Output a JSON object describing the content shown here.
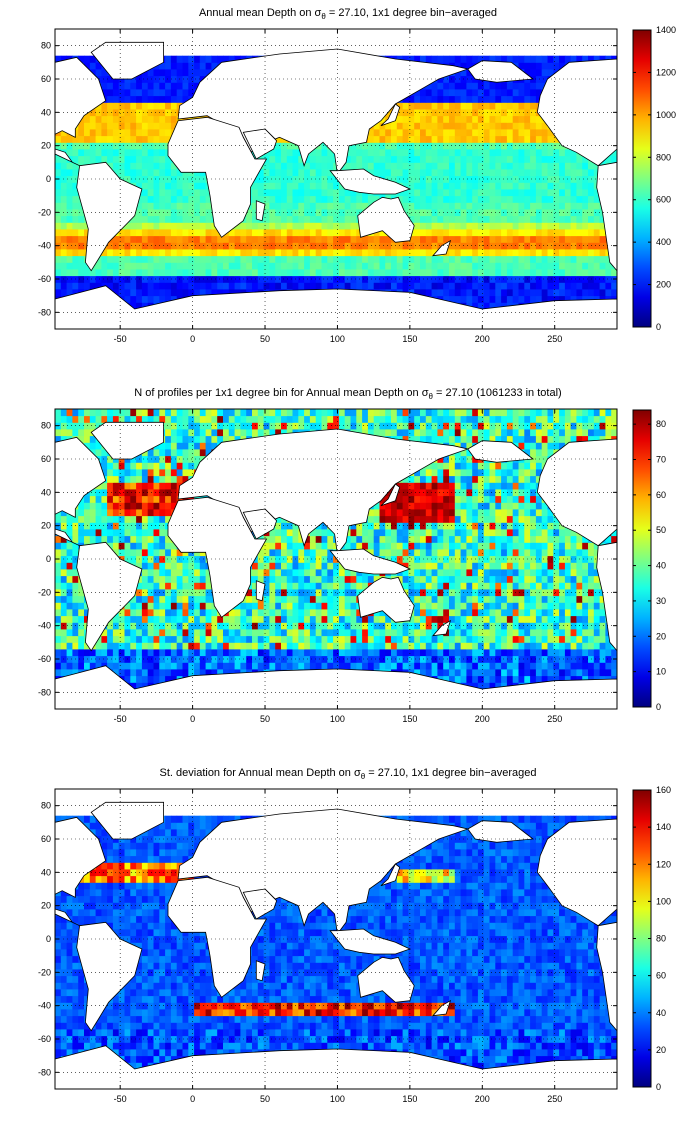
{
  "panels": [
    {
      "title_pre": "Annual mean Depth on σ",
      "title_sub": "θ",
      "title_post": " = 27.10, 1x1 degree bin−averaged",
      "colorbar_ticks": [
        "0",
        "200",
        "400",
        "600",
        "800",
        "1000",
        "1200",
        "1400"
      ],
      "clim": [
        0,
        1400
      ]
    },
    {
      "title_pre": "N of profiles per 1x1 degree bin for Annual mean Depth on σ",
      "title_sub": "θ",
      "title_post": " = 27.10 (1061233 in total)",
      "colorbar_ticks": [
        "0",
        "10",
        "20",
        "30",
        "40",
        "50",
        "60",
        "70",
        "80"
      ],
      "clim": [
        0,
        84
      ]
    },
    {
      "title_pre": "St. deviation for Annual mean Depth on σ",
      "title_sub": "θ",
      "title_post": " = 27.10, 1x1 degree bin−averaged",
      "colorbar_ticks": [
        "0",
        "20",
        "40",
        "60",
        "80",
        "100",
        "120",
        "140",
        "160"
      ],
      "clim": [
        0,
        160
      ]
    }
  ],
  "axes": {
    "x_ticks": [
      "-50",
      "0",
      "50",
      "100",
      "150",
      "200",
      "250"
    ],
    "y_ticks": [
      "80",
      "60",
      "40",
      "20",
      "0",
      "-20",
      "-40",
      "-60",
      "-80"
    ],
    "xlim": [
      -95,
      293
    ],
    "ylim": [
      -90,
      90
    ]
  },
  "chart_data": [
    {
      "type": "heatmap",
      "title": "Annual mean Depth on σθ = 27.10, 1x1 degree bin−averaged",
      "xlim": [
        -95,
        293
      ],
      "ylim": [
        -90,
        90
      ],
      "x_ticks": [
        -50,
        0,
        50,
        100,
        150,
        200,
        250
      ],
      "y_ticks": [
        -80,
        -60,
        -40,
        -20,
        0,
        20,
        40,
        60,
        80
      ],
      "colorbar": {
        "min": 0,
        "max": 1400,
        "ticks": [
          0,
          200,
          400,
          600,
          800,
          1000,
          1200,
          1400
        ],
        "colormap": "jet"
      },
      "grid": true
    },
    {
      "type": "heatmap",
      "title": "N of profiles per 1x1 degree bin for Annual mean Depth on σθ = 27.10 (1061233 in total)",
      "xlim": [
        -95,
        293
      ],
      "ylim": [
        -90,
        90
      ],
      "x_ticks": [
        -50,
        0,
        50,
        100,
        150,
        200,
        250
      ],
      "y_ticks": [
        -80,
        -60,
        -40,
        -20,
        0,
        20,
        40,
        60,
        80
      ],
      "colorbar": {
        "min": 0,
        "max": 84,
        "ticks": [
          0,
          10,
          20,
          30,
          40,
          50,
          60,
          70,
          80
        ],
        "colormap": "jet"
      },
      "grid": true
    },
    {
      "type": "heatmap",
      "title": "St. deviation for Annual mean Depth on σθ = 27.10, 1x1 degree bin−averaged",
      "xlim": [
        -95,
        293
      ],
      "ylim": [
        -90,
        90
      ],
      "x_ticks": [
        -50,
        0,
        50,
        100,
        150,
        200,
        250
      ],
      "y_ticks": [
        -80,
        -60,
        -40,
        -20,
        0,
        20,
        40,
        60,
        80
      ],
      "colorbar": {
        "min": 0,
        "max": 160,
        "ticks": [
          0,
          20,
          40,
          60,
          80,
          100,
          120,
          140,
          160
        ],
        "colormap": "jet"
      },
      "grid": true
    }
  ]
}
